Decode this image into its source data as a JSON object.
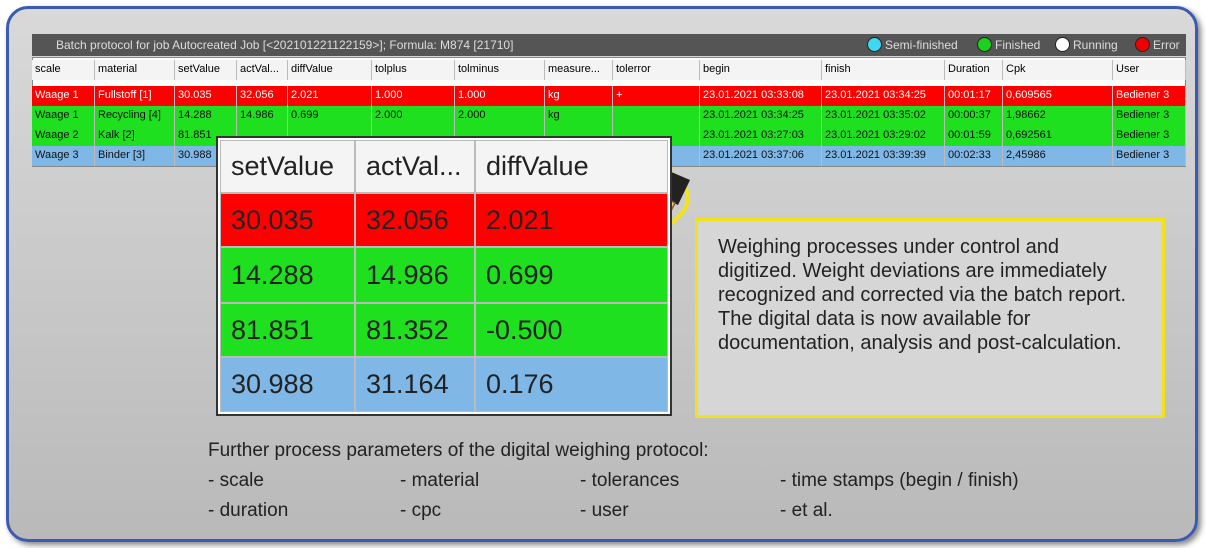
{
  "window": {
    "title": "Batch protocol for job Autocreated Job [<202101221122159>]; Formula: M874 [21710]",
    "legend": [
      "Semi-finished",
      "Finished",
      "Running",
      "Error"
    ]
  },
  "table": {
    "columns": [
      "scale",
      "material",
      "setValue",
      "actVal...",
      "diffValue",
      "tolplus",
      "tolminus",
      "measure...",
      "tolerror",
      "begin",
      "finish",
      "Duration",
      "Cpk",
      "User"
    ],
    "rows": [
      [
        "Waage 1",
        "Fullstoff [1]",
        "30.035",
        "32.056",
        "2.021",
        "1.000",
        "1.000",
        "kg",
        "+",
        "23.01.2021 03:33:08",
        "23.01.2021 03:34:25",
        "00:01:17",
        "0,609565",
        "Bediener 3"
      ],
      [
        "Waage 1",
        "Recycling [4]",
        "14.288",
        "14.986",
        "0.699",
        "2.000",
        "2.000",
        "kg",
        null,
        "23.01.2021 03:34:25",
        "23.01.2021 03:35:02",
        "00:00:37",
        "1,98662",
        "Bediener 3"
      ],
      [
        "Waage 2",
        "Kalk [2]",
        "81.851",
        null,
        null,
        null,
        null,
        null,
        null,
        "23.01.2021 03:27:03",
        "23.01.2021 03:29:02",
        "00:01:59",
        "0,692561",
        "Bediener 3"
      ],
      [
        "Waage 3",
        "Binder [3]",
        "30.988",
        null,
        null,
        null,
        null,
        null,
        null,
        "23.01.2021 03:37:06",
        "23.01.2021 03:39:39",
        "00:02:33",
        "2,45986",
        "Bediener 3"
      ]
    ]
  },
  "zoom": {
    "columns": [
      "setValue",
      "actVal...",
      "diffValue"
    ],
    "rows": [
      [
        "30.035",
        "32.056",
        "2.021"
      ],
      [
        "14.288",
        "14.986",
        "0.699"
      ],
      [
        "81.851",
        "81.352",
        "-0.500"
      ],
      [
        "30.988",
        "31.164",
        "0.176"
      ]
    ]
  },
  "note": "Weighing processes under control and digitized. Weight deviations are immediately recognized and corrected via the batch report. The digital data is now available for documentation, analysis and post-calculation.",
  "footer": {
    "title": "Further process parameters of the digital weighing protocol:",
    "items": [
      "- scale",
      "- material",
      "- tolerances",
      "- time stamps (begin / finish)",
      "- duration",
      "- cpc",
      "- user",
      "- et al."
    ]
  }
}
